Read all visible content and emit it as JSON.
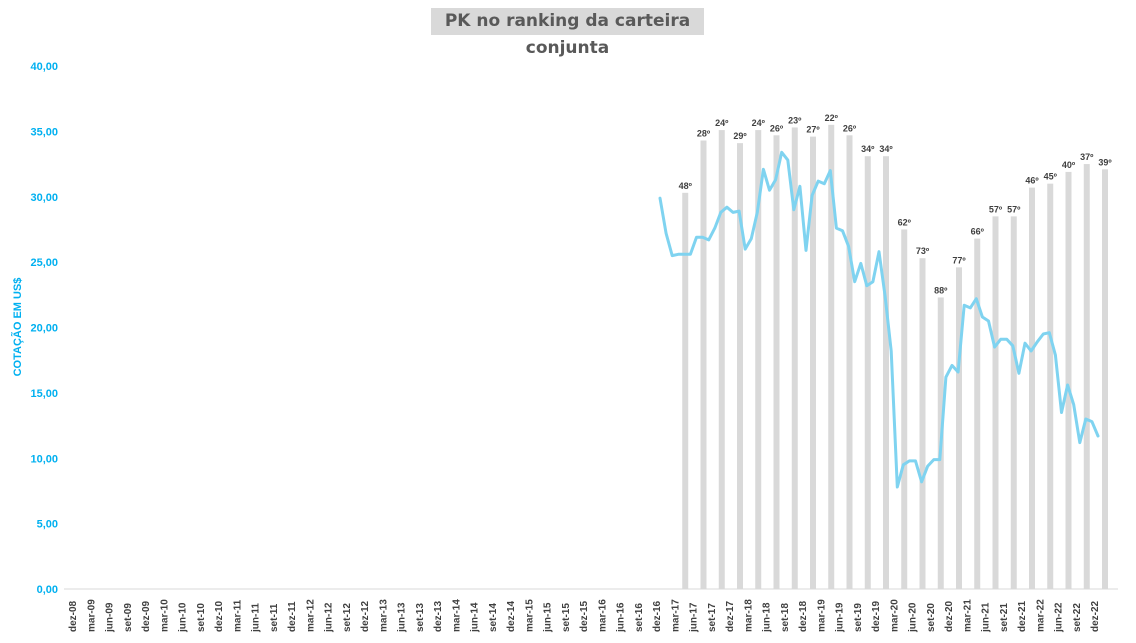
{
  "chart_data": {
    "type": "bar+line",
    "title": "PK no ranking da carteira conjunta",
    "ylabel": "COTAÇÃO EM US$",
    "ylim": [
      0,
      40
    ],
    "yticks": [
      "0,00",
      "5,00",
      "10,00",
      "15,00",
      "20,00",
      "25,00",
      "30,00",
      "35,00",
      "40,00"
    ],
    "xticks": [
      "dez-08",
      "mar-09",
      "jun-09",
      "set-09",
      "dez-09",
      "mar-10",
      "jun-10",
      "set-10",
      "dez-10",
      "mar-11",
      "jun-11",
      "set-11",
      "dez-11",
      "mar-12",
      "jun-12",
      "set-12",
      "dez-12",
      "mar-13",
      "jun-13",
      "set-13",
      "dez-13",
      "mar-14",
      "jun-14",
      "set-14",
      "dez-14",
      "mar-15",
      "jun-15",
      "set-15",
      "dez-15",
      "mar-16",
      "jun-16",
      "set-16",
      "dez-16",
      "mar-17",
      "jun-17",
      "set-17",
      "dez-17",
      "mar-18",
      "jun-18",
      "set-18",
      "dez-18",
      "mar-19",
      "jun-19",
      "set-19",
      "dez-19",
      "mar-20",
      "jun-20",
      "set-20",
      "dez-20",
      "mar-21",
      "jun-21",
      "set-21",
      "dez-21",
      "mar-22",
      "jun-22",
      "set-22",
      "dez-22"
    ],
    "bars": {
      "categories": [
        "mar-17",
        "jun-17",
        "set-17",
        "dez-17",
        "mar-18",
        "jun-18",
        "set-18",
        "dez-18",
        "mar-19",
        "jun-19",
        "set-19",
        "dez-19",
        "mar-20",
        "jun-20",
        "set-20",
        "dez-20",
        "mar-21",
        "jun-21",
        "set-21",
        "dez-21",
        "mar-22",
        "jun-22",
        "set-22",
        "dez-22"
      ],
      "values": [
        30.3,
        34.3,
        35.1,
        34.1,
        35.1,
        34.7,
        35.3,
        34.6,
        35.5,
        34.7,
        33.1,
        33.1,
        27.5,
        25.3,
        22.3,
        24.6,
        26.8,
        28.5,
        28.5,
        30.7,
        31.0,
        31.9,
        32.5,
        32.1
      ],
      "labels": [
        "48º",
        "28º",
        "24º",
        "29º",
        "24º",
        "26º",
        "23º",
        "27º",
        "22º",
        "26º",
        "34º",
        "34º",
        "62º",
        "73º",
        "88º",
        "77º",
        "66º",
        "57º",
        "57º",
        "46º",
        "45º",
        "40º",
        "37º",
        "39º"
      ]
    },
    "line": {
      "start": "dez-16",
      "step_months": 1,
      "values": [
        29.9,
        27.2,
        25.5,
        25.6,
        25.6,
        25.6,
        26.9,
        26.9,
        26.7,
        27.6,
        28.8,
        29.2,
        28.8,
        28.9,
        26.0,
        26.8,
        28.8,
        32.1,
        30.5,
        31.3,
        33.4,
        32.8,
        29.0,
        30.8,
        25.9,
        30.1,
        31.2,
        31.0,
        32.0,
        27.6,
        27.4,
        26.2,
        23.5,
        24.9,
        23.2,
        23.5,
        25.8,
        22.4,
        18.2,
        7.8,
        9.5,
        9.8,
        9.8,
        8.2,
        9.4,
        9.9,
        9.9,
        16.2,
        17.1,
        16.6,
        21.7,
        21.5,
        22.2,
        20.8,
        20.5,
        18.5,
        19.1,
        19.1,
        18.6,
        16.5,
        18.8,
        18.2,
        18.9,
        19.5,
        19.6,
        17.9,
        13.5,
        15.6,
        14.1,
        11.2,
        13.0,
        12.8,
        11.7
      ]
    },
    "colors": {
      "bars": "#d9d9d9",
      "line": "#7fd3f0",
      "axis_text": "#00b0f0"
    },
    "grid": false
  }
}
